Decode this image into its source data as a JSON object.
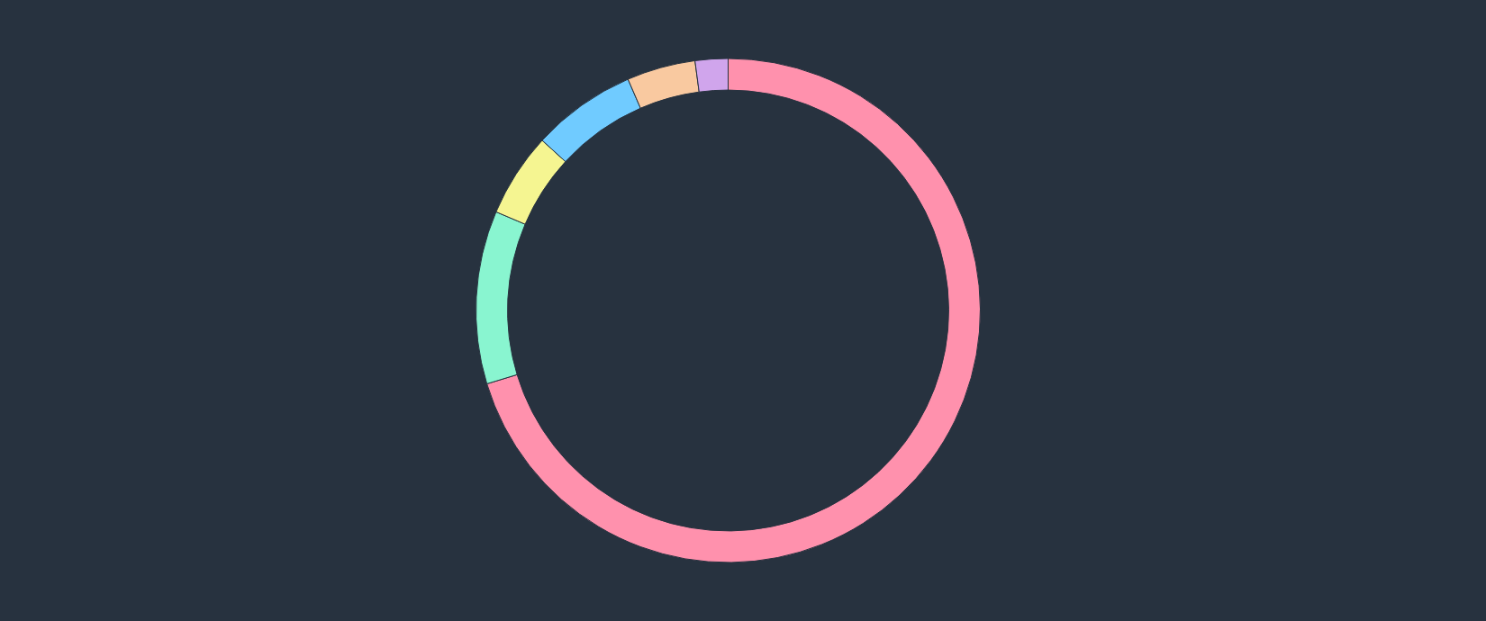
{
  "chart_data": {
    "type": "donut",
    "categories": [
      null,
      null,
      null,
      null,
      null,
      null
    ],
    "values": [
      70.3,
      11.1,
      5.4,
      6.7,
      4.4,
      2.1
    ],
    "colors": [
      "#ff91ad",
      "#89f5d0",
      "#f5f591",
      "#70cbff",
      "#f9c9a0",
      "#d0a5ec"
    ]
  }
}
